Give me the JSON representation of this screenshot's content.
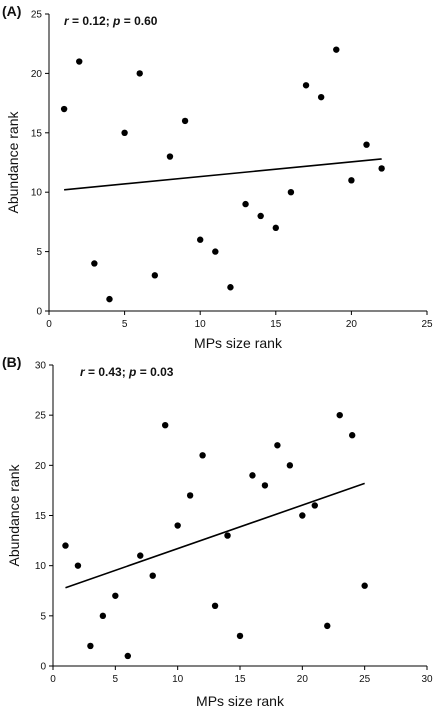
{
  "chart_data": [
    {
      "type": "scatter",
      "panel_label": "(A)",
      "annotation": {
        "r_symbol": "r",
        "r_text": " = 0.12; ",
        "p_symbol": "p",
        "p_text": " = 0.60"
      },
      "title": "",
      "xlabel": "MPs size rank",
      "ylabel": "Abundance rank",
      "xlim": [
        0,
        25
      ],
      "ylim": [
        0,
        25
      ],
      "xticks": [
        0,
        5,
        10,
        15,
        20,
        25
      ],
      "yticks": [
        0,
        5,
        10,
        15,
        20,
        25
      ],
      "grid": false,
      "legend": "none",
      "points": [
        {
          "x": 1,
          "y": 17
        },
        {
          "x": 2,
          "y": 21
        },
        {
          "x": 3,
          "y": 4
        },
        {
          "x": 4,
          "y": 1
        },
        {
          "x": 5,
          "y": 15
        },
        {
          "x": 6,
          "y": 20
        },
        {
          "x": 7,
          "y": 3
        },
        {
          "x": 8,
          "y": 13
        },
        {
          "x": 9,
          "y": 16
        },
        {
          "x": 10,
          "y": 6
        },
        {
          "x": 11,
          "y": 5
        },
        {
          "x": 12,
          "y": 2
        },
        {
          "x": 13,
          "y": 9
        },
        {
          "x": 14,
          "y": 8
        },
        {
          "x": 15,
          "y": 7
        },
        {
          "x": 16,
          "y": 10
        },
        {
          "x": 17,
          "y": 19
        },
        {
          "x": 18,
          "y": 18
        },
        {
          "x": 19,
          "y": 22
        },
        {
          "x": 20,
          "y": 11
        },
        {
          "x": 21,
          "y": 14
        },
        {
          "x": 22,
          "y": 12
        }
      ],
      "fit_line": {
        "x1": 1,
        "y1": 10.2,
        "x2": 22,
        "y2": 12.8
      },
      "point_color": "#000000",
      "line_color": "#000000"
    },
    {
      "type": "scatter",
      "panel_label": "(B)",
      "annotation": {
        "r_symbol": "r",
        "r_text": " = 0.43; ",
        "p_symbol": "p",
        "p_text": " = 0.03"
      },
      "title": "",
      "xlabel": "MPs size rank",
      "ylabel": "Abundance rank",
      "xlim": [
        0,
        30
      ],
      "ylim": [
        0,
        30
      ],
      "xticks": [
        0,
        5,
        10,
        15,
        20,
        25,
        30
      ],
      "yticks": [
        0,
        5,
        10,
        15,
        20,
        25,
        30
      ],
      "grid": false,
      "legend": "none",
      "points": [
        {
          "x": 1,
          "y": 12
        },
        {
          "x": 2,
          "y": 10
        },
        {
          "x": 3,
          "y": 2
        },
        {
          "x": 4,
          "y": 5
        },
        {
          "x": 5,
          "y": 7
        },
        {
          "x": 6,
          "y": 1
        },
        {
          "x": 7,
          "y": 11
        },
        {
          "x": 8,
          "y": 9
        },
        {
          "x": 9,
          "y": 24
        },
        {
          "x": 10,
          "y": 14
        },
        {
          "x": 11,
          "y": 17
        },
        {
          "x": 12,
          "y": 21
        },
        {
          "x": 13,
          "y": 6
        },
        {
          "x": 14,
          "y": 13
        },
        {
          "x": 15,
          "y": 3
        },
        {
          "x": 16,
          "y": 19
        },
        {
          "x": 17,
          "y": 18
        },
        {
          "x": 18,
          "y": 22
        },
        {
          "x": 19,
          "y": 20
        },
        {
          "x": 20,
          "y": 15
        },
        {
          "x": 21,
          "y": 16
        },
        {
          "x": 22,
          "y": 4
        },
        {
          "x": 23,
          "y": 25
        },
        {
          "x": 24,
          "y": 23
        },
        {
          "x": 25,
          "y": 8
        }
      ],
      "fit_line": {
        "x1": 1,
        "y1": 7.8,
        "x2": 25,
        "y2": 18.2
      },
      "point_color": "#000000",
      "line_color": "#000000"
    }
  ]
}
